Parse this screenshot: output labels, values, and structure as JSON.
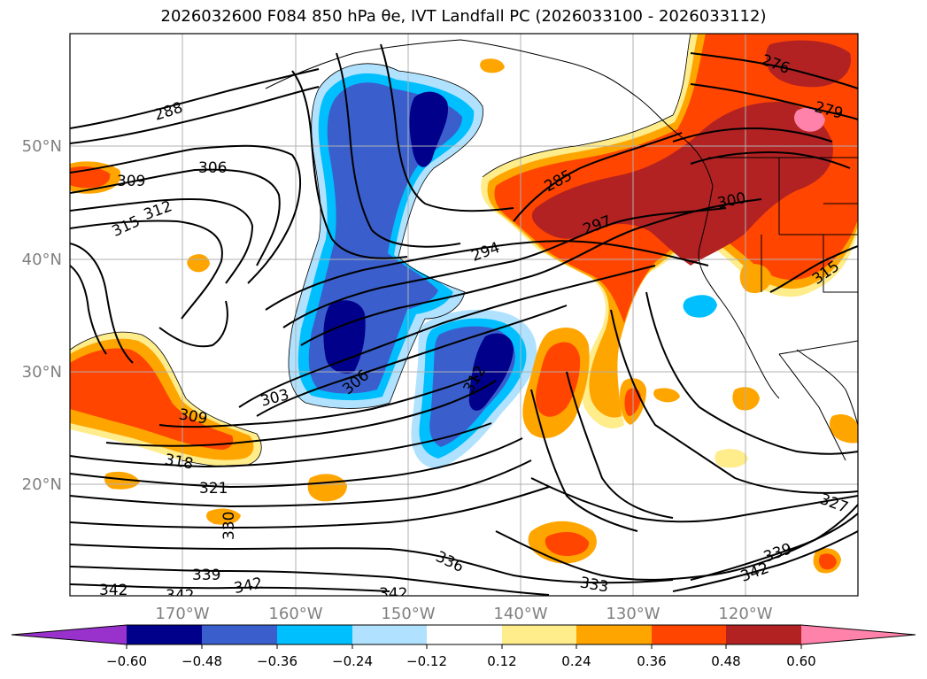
{
  "title": "2026032600 F084 850 hPa θe, IVT Landfall PC (2026033100 - 2026033112)",
  "axes": {
    "lat_labels": [
      "50°N",
      "40°N",
      "30°N",
      "20°N"
    ],
    "lon_labels": [
      "170°W",
      "160°W",
      "150°W",
      "140°W",
      "130°W",
      "120°W"
    ]
  },
  "colorbar": {
    "colors": [
      "#9932CC",
      "#00008B",
      "#3A5FCD",
      "#00BFFF",
      "#B0E2FF",
      "#FFFFFF",
      "#FFEC8B",
      "#FFA500",
      "#FF4500",
      "#B22222",
      "#FF82AB"
    ],
    "tick_labels": [
      "−0.60",
      "−0.48",
      "−0.36",
      "−0.24",
      "−0.12",
      "0.12",
      "0.24",
      "0.36",
      "0.48",
      "0.60"
    ]
  },
  "contour_labels": [
    "288",
    "306",
    "309",
    "315",
    "312",
    "294",
    "285",
    "297",
    "300",
    "276",
    "279",
    "303",
    "306",
    "312",
    "309",
    "318",
    "321",
    "330",
    "339",
    "342",
    "342",
    "342",
    "342",
    "336",
    "333",
    "342",
    "339",
    "327",
    "315"
  ],
  "theme": {
    "coast_color": "#000000",
    "grid_color": "#b0b0b0",
    "frame_color": "#000000"
  }
}
